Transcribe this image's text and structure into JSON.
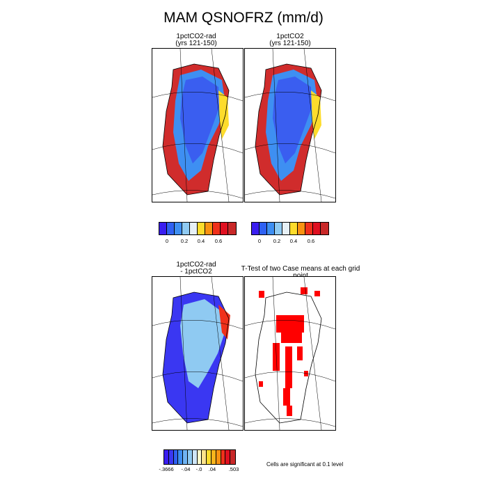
{
  "title": "MAM QSNOFRZ (mm/d)",
  "panels": {
    "p1": {
      "title_line1": "1pctCO2-rad",
      "title_line2": "(yrs 121-150)"
    },
    "p2": {
      "title_line1": "1pctCO2",
      "title_line2": "(yrs 121-150)"
    },
    "p3": {
      "title_line1": "1pctCO2-rad",
      "title_line2": "- 1pctCO2"
    },
    "p4": {
      "title": "T-Test of two Case means at each grid point"
    }
  },
  "colorbar_top": {
    "colors": [
      "#3a1ef0",
      "#2f61f2",
      "#3e8ff2",
      "#8fcaf2",
      "#e6f0f6",
      "#fddc2c",
      "#f99211",
      "#f0301a",
      "#e01020",
      "#c82828"
    ],
    "labels": [
      "0",
      "0.2",
      "0.4",
      "0.6"
    ]
  },
  "colorbar_diff": {
    "colors": [
      "#3a1ef0",
      "#3a37f2",
      "#2f61f2",
      "#3e8ff2",
      "#6fb3f2",
      "#8fcaf2",
      "#cfe6f6",
      "#fefccc",
      "#fde48c",
      "#fddc2c",
      "#f9b41c",
      "#f99211",
      "#f0301a",
      "#e01020",
      "#c82828"
    ],
    "labels": [
      "-.3666",
      "-.04",
      "-.0",
      ".04",
      ".503"
    ]
  },
  "footnote": "Cells are significant at 0.1 level"
}
